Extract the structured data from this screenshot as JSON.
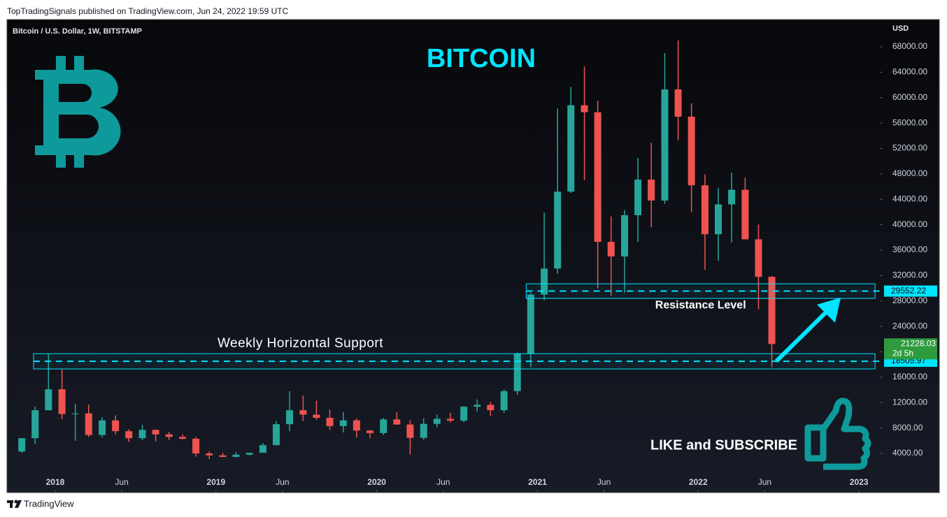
{
  "header": {
    "publisher": "TopTradingSignals published on TradingView.com, Jun 24, 2022 19:59 UTC",
    "footer": "TradingView"
  },
  "chart_data": {
    "type": "candlestick",
    "symbol": "Bitcoin / U.S. Dollar, 1W, BITSTAMP",
    "title": "BITCOIN",
    "currency": "USD",
    "annotation": "LIKE and SUBSCRIBE",
    "countdown": "2d 5h",
    "up_color": "#26a69a",
    "down_color": "#ef5350",
    "level_color": "#00e5ff",
    "x": [
      2017.792,
      2017.875,
      2017.958,
      2018.042,
      2018.125,
      2018.208,
      2018.292,
      2018.375,
      2018.458,
      2018.542,
      2018.625,
      2018.708,
      2018.792,
      2018.875,
      2018.958,
      2019.042,
      2019.125,
      2019.208,
      2019.292,
      2019.375,
      2019.458,
      2019.542,
      2019.625,
      2019.708,
      2019.792,
      2019.875,
      2019.958,
      2020.042,
      2020.125,
      2020.208,
      2020.292,
      2020.375,
      2020.458,
      2020.542,
      2020.625,
      2020.708,
      2020.792,
      2020.875,
      2020.958,
      2021.042,
      2021.125,
      2021.208,
      2021.292,
      2021.375,
      2021.458,
      2021.542,
      2021.625,
      2021.708,
      2021.792,
      2021.875,
      2021.958,
      2022.042,
      2022.125,
      2022.208,
      2022.292,
      2022.375,
      2022.458
    ],
    "open": [
      4300,
      6400,
      10800,
      14100,
      10200,
      10300,
      6900,
      9200,
      7500,
      6400,
      7700,
      7000,
      6600,
      6300,
      4000,
      3700,
      3450,
      3800,
      4100,
      5300,
      8600,
      10800,
      10100,
      9600,
      8300,
      9200,
      7600,
      7200,
      9350,
      8550,
      6450,
      8650,
      9450,
      9150,
      11350,
      11650,
      10800,
      13800,
      19700,
      29000,
      33100,
      45200,
      58800,
      57700,
      37300,
      35000,
      41500,
      47100,
      43800,
      61300,
      57000,
      46200,
      38500,
      43200,
      45500,
      37700,
      31800
    ],
    "high": [
      6400,
      11400,
      19700,
      17200,
      11800,
      11700,
      9700,
      10000,
      7800,
      8500,
      7800,
      7400,
      7000,
      6600,
      4300,
      4100,
      4200,
      4100,
      5600,
      9100,
      13800,
      13100,
      12300,
      10900,
      10500,
      9500,
      7700,
      9600,
      10500,
      9200,
      9500,
      10100,
      10400,
      11450,
      12500,
      12100,
      14100,
      19900,
      29300,
      41900,
      58300,
      61700,
      64900,
      59500,
      41300,
      42300,
      50500,
      52900,
      67000,
      69000,
      59100,
      47900,
      45800,
      48200,
      47400,
      40000,
      31900
    ],
    "low": [
      4100,
      5500,
      10800,
      9400,
      6000,
      6600,
      6500,
      7000,
      5800,
      6100,
      5900,
      6100,
      6200,
      3500,
      3100,
      3400,
      3400,
      3700,
      4100,
      5300,
      7500,
      9100,
      9300,
      7700,
      7300,
      6500,
      6400,
      6900,
      8500,
      3850,
      6150,
      8100,
      8900,
      8900,
      10600,
      9900,
      10400,
      13200,
      17600,
      28100,
      32300,
      45000,
      47000,
      30000,
      28800,
      29300,
      37300,
      39600,
      43300,
      53300,
      42000,
      32900,
      34300,
      37200,
      37700,
      26700,
      17600
    ],
    "close": [
      6400,
      10800,
      14100,
      10200,
      10300,
      6900,
      9200,
      7500,
      6400,
      7700,
      7000,
      6600,
      6300,
      4000,
      3700,
      3450,
      3800,
      4100,
      5300,
      8600,
      10800,
      10100,
      9600,
      8300,
      9200,
      7600,
      7200,
      9350,
      8550,
      6450,
      8650,
      9450,
      9150,
      11350,
      11650,
      10800,
      13800,
      19700,
      29000,
      33100,
      45200,
      58800,
      57700,
      37300,
      35000,
      41500,
      47100,
      43800,
      61300,
      57000,
      46200,
      38500,
      43200,
      45500,
      37700,
      31800,
      21228.03
    ],
    "xlim": [
      2017.7,
      2023.13
    ],
    "xticks": [
      2018,
      {
        "value": 2018.414,
        "label": "Jun"
      },
      2019,
      {
        "value": 2019.414,
        "label": "Jun"
      },
      2020,
      {
        "value": 2020.414,
        "label": "Jun"
      },
      2021,
      {
        "value": 2021.414,
        "label": "Jun"
      },
      2022,
      {
        "value": 2022.414,
        "label": "Jun"
      },
      2023
    ],
    "ylim": [
      -2160,
      72290
    ],
    "yticks": [
      {
        "value": 4000,
        "label": "4000.00"
      },
      {
        "value": 8000,
        "label": "8000.00"
      },
      {
        "value": 12000,
        "label": "12000.00"
      },
      {
        "value": 16000,
        "label": "16000.00"
      },
      {
        "value": 20000,
        "label": "20000.00"
      },
      {
        "value": 24000,
        "label": "24000.00"
      },
      {
        "value": 28000,
        "label": "28000.00"
      },
      {
        "value": 32000,
        "label": "32000.00"
      },
      {
        "value": 36000,
        "label": "36000.00"
      },
      {
        "value": 40000,
        "label": "40000.00"
      },
      {
        "value": 44000,
        "label": "44000.00"
      },
      {
        "value": 48000,
        "label": "48000.00"
      },
      {
        "value": 52000,
        "label": "52000.00"
      },
      {
        "value": 56000,
        "label": "56000.00"
      },
      {
        "value": 60000,
        "label": "60000.00"
      },
      {
        "value": 64000,
        "label": "64000.00"
      },
      {
        "value": 68000,
        "label": "68000.00"
      }
    ],
    "zones": [
      {
        "x": [
          2020.93,
          2023.1
        ],
        "y": [
          28400,
          30700
        ],
        "level": 29552.22,
        "label": "Resistance Level",
        "label_position": "below"
      },
      {
        "x": [
          2017.865,
          2023.1
        ],
        "y": [
          17300,
          19700
        ],
        "level": 18505.97,
        "label": "Weekly Horizontal Support",
        "label_position": "above"
      }
    ]
  }
}
